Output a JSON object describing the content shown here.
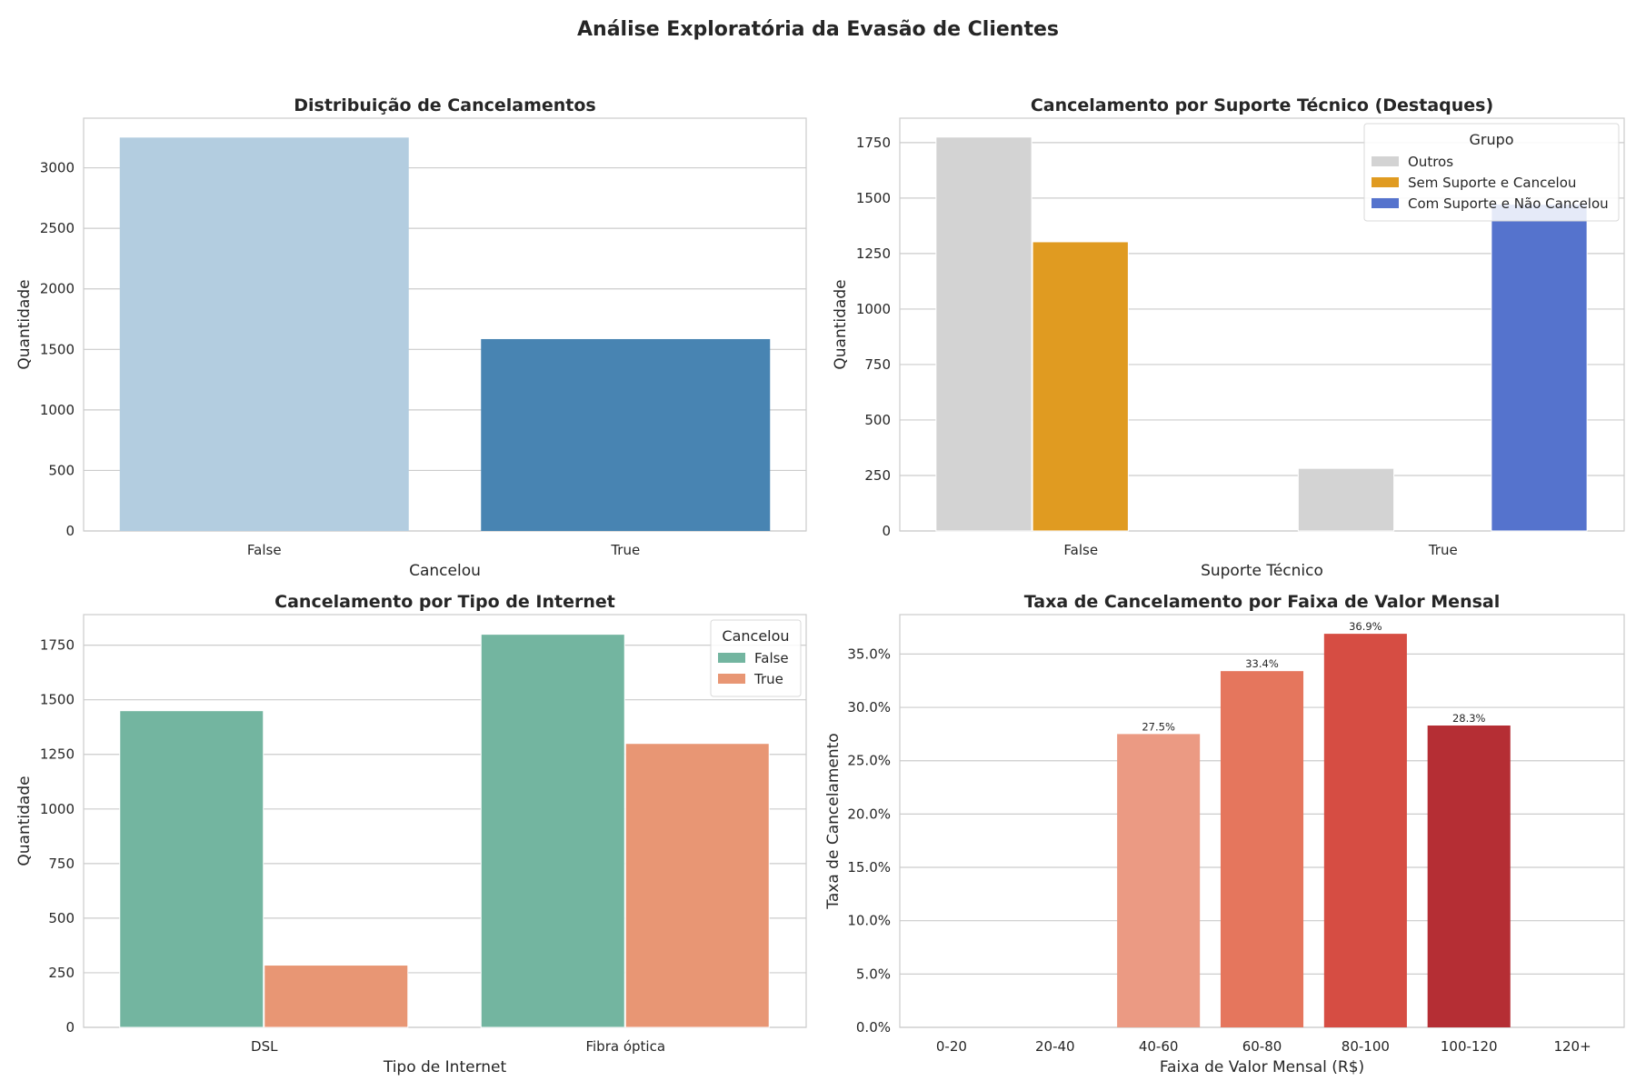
{
  "figure": {
    "title": "Análise Exploratória da Evasão de Clientes"
  },
  "chart_data": [
    {
      "type": "bar",
      "title": "Distribuição de Cancelamentos",
      "xlabel": "Cancelou",
      "ylabel": "Quantidade",
      "categories": [
        "False",
        "True"
      ],
      "values": [
        3250,
        1585
      ],
      "colors": [
        "#b3cde0",
        "#4884b2"
      ],
      "ylim": [
        0,
        3410
      ],
      "yticks": [
        0,
        500,
        1000,
        1500,
        2000,
        2500,
        3000
      ],
      "grid": true
    },
    {
      "type": "bar",
      "title": "Cancelamento por Suporte Técnico (Destaques)",
      "xlabel": "Suporte Técnico",
      "ylabel": "Quantidade",
      "categories": [
        "False",
        "True"
      ],
      "legend": {
        "title": "Grupo",
        "placement": "upper right"
      },
      "series": [
        {
          "name": "Outros",
          "color": "#d3d3d3",
          "values": [
            1775,
            282
          ]
        },
        {
          "name": "Sem Suporte e Cancelou",
          "color": "#e09b21",
          "values": [
            1303,
            null
          ]
        },
        {
          "name": "Com Suporte e Não Cancelou",
          "color": "#5573cd",
          "values": [
            null,
            1472
          ]
        }
      ],
      "ylim": [
        0,
        1860
      ],
      "yticks": [
        0,
        250,
        500,
        750,
        1000,
        1250,
        1500,
        1750
      ],
      "grid": true
    },
    {
      "type": "bar",
      "title": "Cancelamento por Tipo de Internet",
      "xlabel": "Tipo de Internet",
      "ylabel": "Quantidade",
      "categories": [
        "DSL",
        "Fibra óptica"
      ],
      "legend": {
        "title": "Cancelou",
        "placement": "upper right"
      },
      "series": [
        {
          "name": "False",
          "color": "#73b5a0",
          "values": [
            1450,
            1800
          ]
        },
        {
          "name": "True",
          "color": "#e89674",
          "values": [
            285,
            1300
          ]
        }
      ],
      "ylim": [
        0,
        1890
      ],
      "yticks": [
        0,
        250,
        500,
        750,
        1000,
        1250,
        1500,
        1750
      ],
      "grid": true
    },
    {
      "type": "bar",
      "title": "Taxa de Cancelamento por Faixa de Valor Mensal",
      "xlabel": "Faixa de Valor Mensal (R$)",
      "ylabel": "Taxa de Cancelamento",
      "categories": [
        "0-20",
        "20-40",
        "40-60",
        "60-80",
        "80-100",
        "100-120",
        "120+"
      ],
      "values": [
        null,
        null,
        27.5,
        33.4,
        36.9,
        28.3,
        null
      ],
      "data_labels": [
        "",
        "",
        "27.5%",
        "33.4%",
        "36.9%",
        "28.3%",
        ""
      ],
      "colors": [
        "#fcbba1",
        "#fc9272",
        "#eb9a83",
        "#e5765d",
        "#d64d43",
        "#b52e34",
        "#99000d"
      ],
      "ylim": [
        0,
        38.7
      ],
      "yticks": [
        0,
        5,
        10,
        15,
        20,
        25,
        30,
        35
      ],
      "ytick_labels": [
        "0.0%",
        "5.0%",
        "10.0%",
        "15.0%",
        "20.0%",
        "25.0%",
        "30.0%",
        "35.0%"
      ],
      "grid": true
    }
  ]
}
